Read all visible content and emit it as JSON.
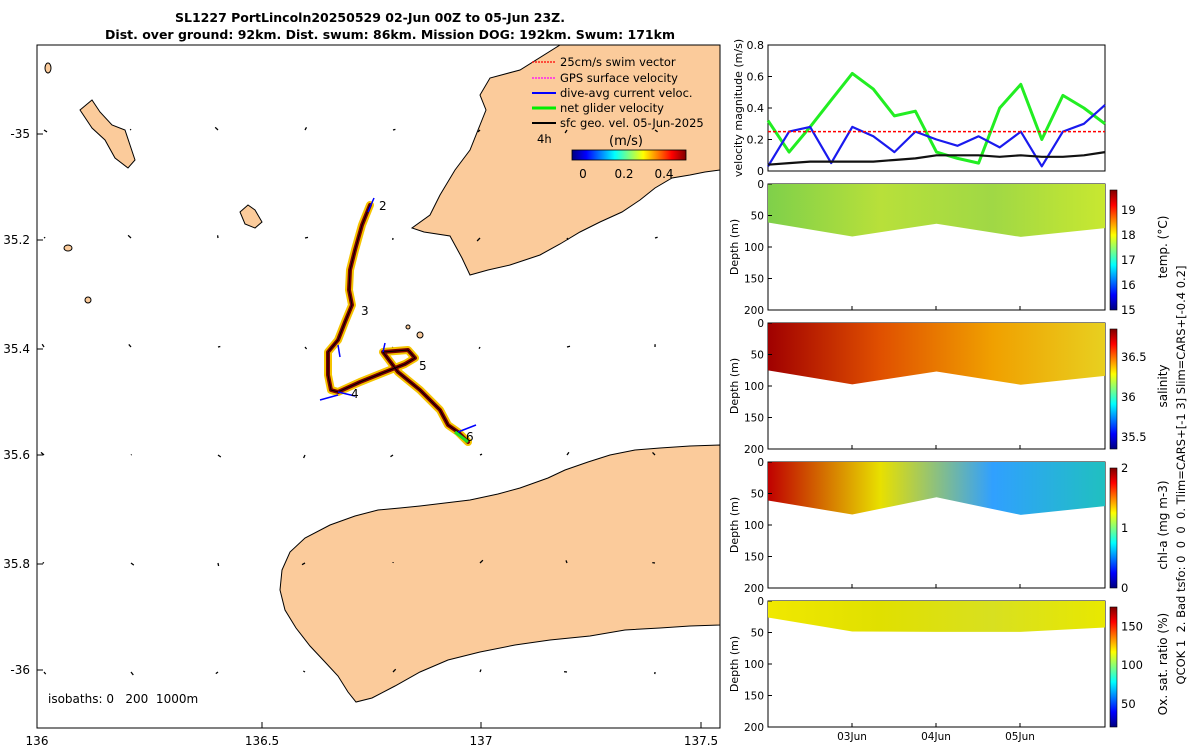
{
  "header": {
    "title_line1": "SL1227 PortLincoln20250529 02-Jun 00Z to 05-Jun 23Z.",
    "title_line2": "Dist. over ground: 92km. Dist. swum: 86km. Mission DOG: 192km. Swum: 171km"
  },
  "map": {
    "x_ticks": [
      "136",
      "136.5",
      "137",
      "137.5"
    ],
    "y_ticks": [
      "-35",
      "35.2",
      "35.4",
      "35.6",
      "35.8",
      "-36"
    ],
    "legend": [
      {
        "label": "25cm/s swim vector",
        "color": "#ff0000"
      },
      {
        "label": "GPS surface velocity",
        "color": "#ff00ff"
      },
      {
        "label": "dive-avg current veloc.",
        "color": "#0000ff"
      },
      {
        "label": "net glider velocity",
        "color": "#00ee00"
      },
      {
        "label": "sfc geo. vel. 05-Jun-2025",
        "color": "#000000"
      }
    ],
    "legend_note": "4h",
    "colorbar_label": "(m/s)",
    "colorbar_ticks": [
      "0",
      "0.2",
      "0.4"
    ],
    "track_labels": [
      "2",
      "3",
      "4",
      "5",
      "6"
    ],
    "isobaths_text": "isobaths: 0   200  1000m",
    "land_color": "#fbcb9b"
  },
  "chart_data": [
    {
      "type": "line",
      "title": "",
      "ylabel": "velocity magnitude (m/s)",
      "ylim": [
        0,
        0.8
      ],
      "yticks": [
        "0",
        "0.2",
        "0.4",
        "0.6",
        "0.8"
      ],
      "x_days": [
        0,
        0.25,
        0.5,
        0.75,
        1.0,
        1.25,
        1.5,
        1.75,
        2.0,
        2.25,
        2.5,
        2.75,
        3.0,
        3.25,
        3.5,
        3.75,
        4.0
      ],
      "series": [
        {
          "name": "net glider velocity",
          "color": "#22ee22",
          "values": [
            0.32,
            0.12,
            0.28,
            0.45,
            0.62,
            0.52,
            0.35,
            0.38,
            0.12,
            0.08,
            0.05,
            0.4,
            0.55,
            0.2,
            0.48,
            0.4,
            0.3
          ]
        },
        {
          "name": "dive-avg current veloc.",
          "color": "#1a1aee",
          "values": [
            0.03,
            0.25,
            0.28,
            0.05,
            0.28,
            0.22,
            0.12,
            0.25,
            0.2,
            0.16,
            0.22,
            0.15,
            0.25,
            0.03,
            0.25,
            0.3,
            0.42
          ]
        },
        {
          "name": "25cm/s swim vector",
          "color": "#ff0000",
          "values": [
            0.25,
            0.25,
            0.25,
            0.25,
            0.25,
            0.25,
            0.25,
            0.25,
            0.25,
            0.25,
            0.25,
            0.25,
            0.25,
            0.25,
            0.25,
            0.25,
            0.25
          ]
        },
        {
          "name": "sfc geo. vel.",
          "color": "#111111",
          "values": [
            0.04,
            0.05,
            0.06,
            0.06,
            0.06,
            0.06,
            0.07,
            0.08,
            0.1,
            0.1,
            0.1,
            0.09,
            0.1,
            0.09,
            0.09,
            0.1,
            0.12
          ]
        }
      ]
    },
    {
      "type": "heatmap",
      "ylabel": "Depth (m)",
      "ylim": [
        0,
        200
      ],
      "yticks": [
        "0",
        "50",
        "100",
        "150",
        "200"
      ],
      "colorbar_label": "temp. (°C)",
      "colorbar_ticks": [
        "15",
        "16",
        "17",
        "18",
        "19"
      ],
      "clim": [
        15,
        19.8
      ]
    },
    {
      "type": "heatmap",
      "ylabel": "Depth (m)",
      "ylim": [
        0,
        200
      ],
      "yticks": [
        "0",
        "50",
        "100",
        "150",
        "200"
      ],
      "colorbar_label": "salinity",
      "colorbar_ticks": [
        "35.5",
        "36",
        "36.5"
      ],
      "clim": [
        35.35,
        36.85
      ]
    },
    {
      "type": "heatmap",
      "ylabel": "Depth (m)",
      "ylim": [
        0,
        200
      ],
      "yticks": [
        "0",
        "50",
        "100",
        "150",
        "200"
      ],
      "colorbar_label": "chl-a (mg m-3)",
      "colorbar_ticks": [
        "0",
        "1",
        "2"
      ],
      "clim": [
        0,
        2
      ]
    },
    {
      "type": "heatmap",
      "ylabel": "Depth (m)",
      "ylim": [
        0,
        200
      ],
      "yticks": [
        "0",
        "50",
        "100",
        "150",
        "200"
      ],
      "colorbar_label": "Ox. sat. ratio (%)",
      "colorbar_ticks": [
        "50",
        "100",
        "150"
      ],
      "clim": [
        20,
        175
      ],
      "x_ticks": [
        "03Jun",
        "04Jun",
        "05Jun"
      ]
    }
  ],
  "side_text_1": "QCOK 1  2. Bad tsfo: 0  0  0  0. Tlim=CARS+[-1 3] Slim=CARS+[-0.4 0.2]"
}
